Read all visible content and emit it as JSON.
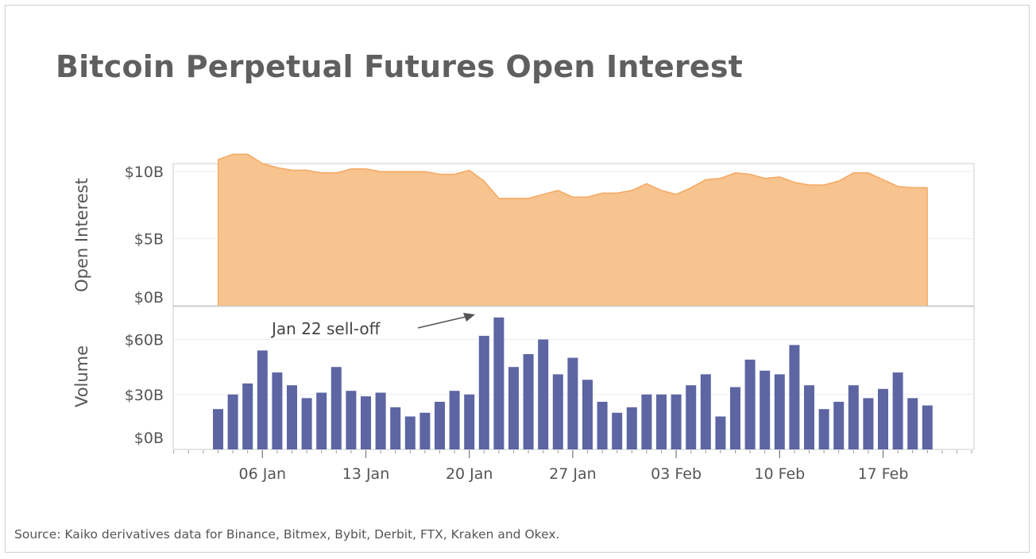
{
  "title": "Bitcoin Perpetual Futures Open Interest",
  "source": "Source: Kaiko derivatives data for Binance, Bitmex, Bybit, Derbit, FTX, Kraken and Okex.",
  "colors": {
    "area_fill": "#f7c38f",
    "area_stroke": "#f4a860",
    "bar": "#5d65a3",
    "text": "#555555",
    "grid": "#eeeeee",
    "frame": "#cccccc"
  },
  "chart_data": [
    {
      "type": "area",
      "ylabel": "Open Interest",
      "ylim": [
        0,
        10.6
      ],
      "y_ticks": [
        0,
        5,
        10
      ],
      "y_tick_labels": [
        "$0B",
        "$5B",
        "$10B"
      ],
      "grid": true,
      "x_start": "2021-01-03",
      "x": [
        "2021-01-03",
        "2021-01-04",
        "2021-01-05",
        "2021-01-06",
        "2021-01-07",
        "2021-01-08",
        "2021-01-09",
        "2021-01-10",
        "2021-01-11",
        "2021-01-12",
        "2021-01-13",
        "2021-01-14",
        "2021-01-15",
        "2021-01-16",
        "2021-01-17",
        "2021-01-18",
        "2021-01-19",
        "2021-01-20",
        "2021-01-21",
        "2021-01-22",
        "2021-01-23",
        "2021-01-24",
        "2021-01-25",
        "2021-01-26",
        "2021-01-27",
        "2021-01-28",
        "2021-01-29",
        "2021-01-30",
        "2021-01-31",
        "2021-02-01",
        "2021-02-02",
        "2021-02-03",
        "2021-02-04",
        "2021-02-05",
        "2021-02-06",
        "2021-02-07",
        "2021-02-08",
        "2021-02-09",
        "2021-02-10",
        "2021-02-11",
        "2021-02-12",
        "2021-02-13",
        "2021-02-14",
        "2021-02-15",
        "2021-02-16",
        "2021-02-17",
        "2021-02-18",
        "2021-02-19",
        "2021-02-20"
      ],
      "values": [
        10.9,
        11.3,
        11.3,
        10.6,
        10.3,
        10.1,
        10.1,
        9.9,
        9.9,
        10.2,
        10.2,
        10.0,
        10.0,
        10.0,
        10.0,
        9.8,
        9.8,
        10.1,
        9.3,
        8.0,
        8.0,
        8.0,
        8.3,
        8.6,
        8.1,
        8.1,
        8.4,
        8.4,
        8.6,
        9.1,
        8.6,
        8.3,
        8.8,
        9.4,
        9.5,
        9.9,
        9.8,
        9.5,
        9.6,
        9.2,
        9.0,
        9.0,
        9.3,
        9.9,
        9.9,
        9.4,
        8.9,
        8.8,
        8.8
      ]
    },
    {
      "type": "bar",
      "ylabel": "Volume",
      "ylim": [
        0,
        78
      ],
      "y_ticks": [
        0,
        30,
        60
      ],
      "y_tick_labels": [
        "$0B",
        "$30B",
        "$60B"
      ],
      "grid": true,
      "x": [
        "2021-01-03",
        "2021-01-04",
        "2021-01-05",
        "2021-01-06",
        "2021-01-07",
        "2021-01-08",
        "2021-01-09",
        "2021-01-10",
        "2021-01-11",
        "2021-01-12",
        "2021-01-13",
        "2021-01-14",
        "2021-01-15",
        "2021-01-16",
        "2021-01-17",
        "2021-01-18",
        "2021-01-19",
        "2021-01-20",
        "2021-01-21",
        "2021-01-22",
        "2021-01-23",
        "2021-01-24",
        "2021-01-25",
        "2021-01-26",
        "2021-01-27",
        "2021-01-28",
        "2021-01-29",
        "2021-01-30",
        "2021-01-31",
        "2021-02-01",
        "2021-02-02",
        "2021-02-03",
        "2021-02-04",
        "2021-02-05",
        "2021-02-06",
        "2021-02-07",
        "2021-02-08",
        "2021-02-09",
        "2021-02-10",
        "2021-02-11",
        "2021-02-12",
        "2021-02-13",
        "2021-02-14",
        "2021-02-15",
        "2021-02-16",
        "2021-02-17",
        "2021-02-18",
        "2021-02-19",
        "2021-02-20"
      ],
      "values": [
        22,
        30,
        36,
        54,
        42,
        35,
        28,
        31,
        45,
        32,
        29,
        31,
        23,
        18,
        20,
        26,
        32,
        30,
        62,
        72,
        45,
        52,
        60,
        41,
        50,
        38,
        26,
        20,
        23,
        30,
        30,
        30,
        35,
        41,
        18,
        34,
        49,
        43,
        41,
        57,
        35,
        22,
        26,
        35,
        28,
        33,
        42,
        28,
        24
      ],
      "annotation": {
        "text": "Jan 22 sell-off",
        "x": "2021-01-21",
        "y": 72
      }
    }
  ],
  "x_axis": {
    "tick_labels": [
      "06 Jan",
      "13 Jan",
      "20 Jan",
      "27 Jan",
      "03 Feb",
      "10 Feb",
      "17 Feb"
    ],
    "tick_dates": [
      "2021-01-06",
      "2021-01-13",
      "2021-01-20",
      "2021-01-27",
      "2021-02-03",
      "2021-02-10",
      "2021-02-17"
    ]
  }
}
